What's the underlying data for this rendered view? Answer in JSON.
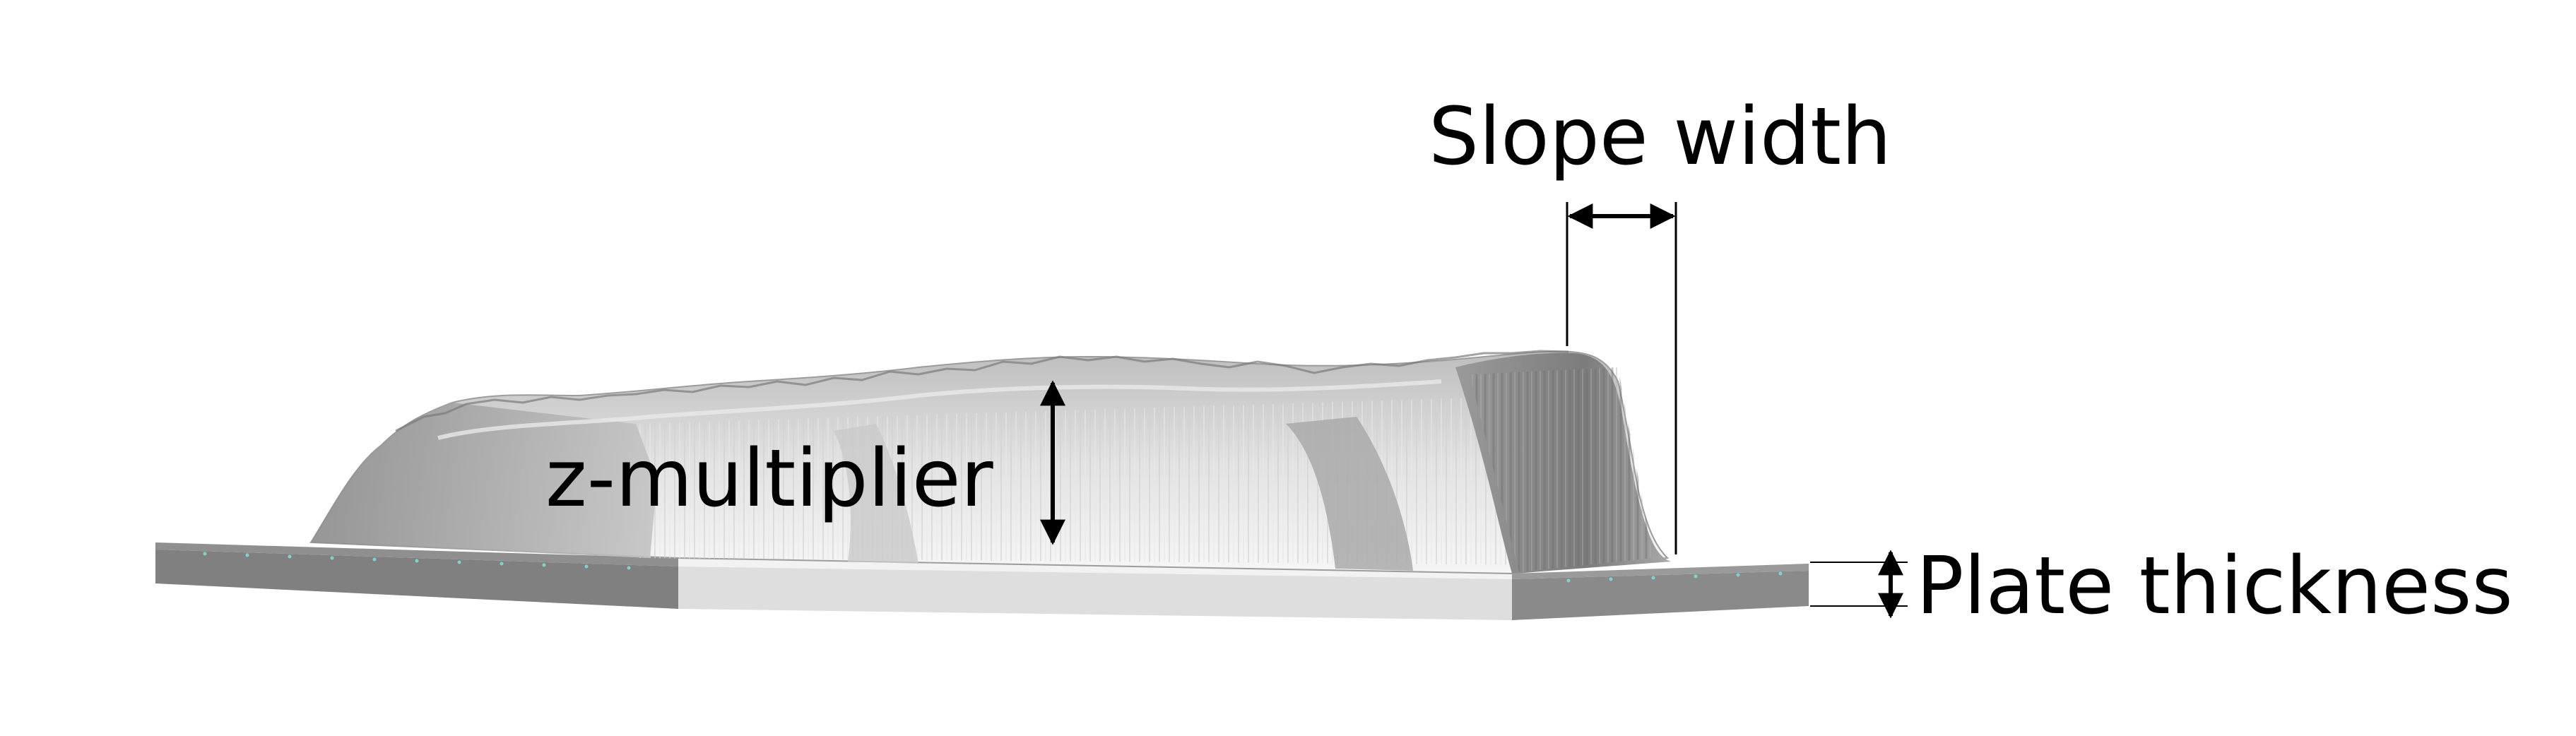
{
  "labels": {
    "slope_width": "Slope width",
    "z_multiplier": "z-multiplier",
    "plate_thickness": "Plate thickness"
  },
  "colors": {
    "plate_top": "#9a9a9a",
    "plate_front": "#808080",
    "plate_center_top": "#f0f0f0",
    "plate_center_front": "#dcdcdc",
    "terrain_light": "#f4f4f4",
    "terrain_mid": "#c8c8c8",
    "terrain_dark": "#8a8a8a",
    "annotation": "#000000"
  }
}
